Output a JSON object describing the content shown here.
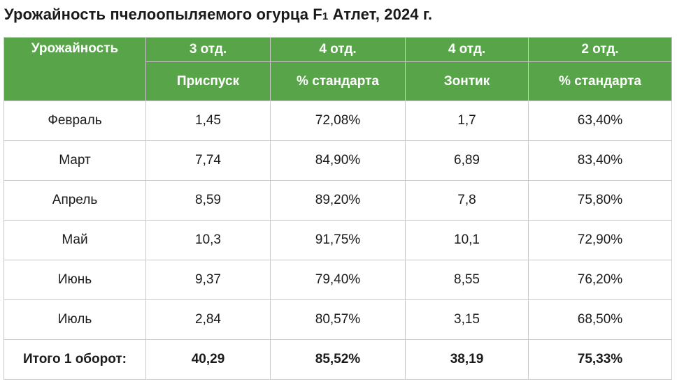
{
  "title": {
    "main": "Урожайность пчелоопыляемого огурца F",
    "sub": "1",
    "rest": " Атлет, 2024 г."
  },
  "table": {
    "header_row1": [
      "Урожайность",
      "3 отд.",
      "4 отд.",
      "4 отд.",
      "2 отд."
    ],
    "header_row2": [
      "Приспуск",
      "% стандарта",
      "Зонтик",
      "% стандарта"
    ],
    "rows": [
      {
        "month": "Февраль",
        "values": [
          "1,45",
          "72,08%",
          "1,7",
          "63,40%"
        ]
      },
      {
        "month": "Март",
        "values": [
          "7,74",
          "84,90%",
          "6,89",
          "83,40%"
        ]
      },
      {
        "month": "Апрель",
        "values": [
          "8,59",
          "89,20%",
          "7,8",
          "75,80%"
        ]
      },
      {
        "month": "Май",
        "values": [
          "10,3",
          "91,75%",
          "10,1",
          "72,90%"
        ]
      },
      {
        "month": "Июнь",
        "values": [
          "9,37",
          "79,40%",
          "8,55",
          "76,20%"
        ]
      },
      {
        "month": "Июль",
        "values": [
          "2,84",
          "80,57%",
          "3,15",
          "68,50%"
        ]
      }
    ],
    "total": {
      "label": "Итого 1 оборот:",
      "values": [
        "40,29",
        "85,52%",
        "38,19",
        "75,33%"
      ]
    }
  },
  "colors": {
    "header_bg": "#58a549",
    "header_text": "#ffffff",
    "border": "#c9c9c9"
  }
}
